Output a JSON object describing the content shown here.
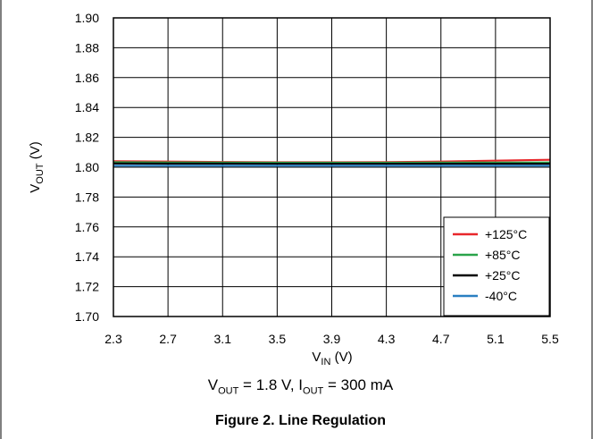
{
  "figure_title": "Figure 2. Line Regulation",
  "caption": {
    "v_sym": "V",
    "v_sub": "OUT",
    "v_rest": " = 1.8 V, ",
    "i_sym": "I",
    "i_sub": "OUT",
    "i_rest": " = 300 mA"
  },
  "colors": {
    "red": "#e8272b",
    "green": "#2aa34a",
    "black": "#000000",
    "blue": "#2a7fc1",
    "grid": "#000000"
  },
  "chart_data": {
    "type": "line",
    "xlabel": {
      "sym": "V",
      "sub": "IN",
      "unit": " (V)"
    },
    "ylabel": {
      "sym": "V",
      "sub": "OUT",
      "unit": " (V)"
    },
    "xlim": [
      2.3,
      5.5
    ],
    "ylim": [
      1.7,
      1.9
    ],
    "x_ticks": [
      "2.3",
      "2.7",
      "3.1",
      "3.5",
      "3.9",
      "4.3",
      "4.7",
      "5.1",
      "5.5"
    ],
    "y_ticks": [
      "1.70",
      "1.72",
      "1.74",
      "1.76",
      "1.78",
      "1.80",
      "1.82",
      "1.84",
      "1.86",
      "1.88",
      "1.90"
    ],
    "grid": true,
    "legend_position": "bottom-right",
    "series": [
      {
        "name": "+125°C",
        "color": "#e8272b",
        "x": [
          2.3,
          2.7,
          3.1,
          3.5,
          3.9,
          4.3,
          4.7,
          5.1,
          5.5
        ],
        "y": [
          1.804,
          1.8038,
          1.8035,
          1.8033,
          1.8033,
          1.8034,
          1.8038,
          1.8044,
          1.805
        ]
      },
      {
        "name": "+85°C",
        "color": "#2aa34a",
        "x": [
          2.3,
          2.7,
          3.1,
          3.5,
          3.9,
          4.3,
          4.7,
          5.1,
          5.5
        ],
        "y": [
          1.8033,
          1.8032,
          1.8031,
          1.803,
          1.803,
          1.803,
          1.8031,
          1.8031,
          1.8032
        ]
      },
      {
        "name": "+25°C",
        "color": "#000000",
        "x": [
          2.3,
          2.7,
          3.1,
          3.5,
          3.9,
          4.3,
          4.7,
          5.1,
          5.5
        ],
        "y": [
          1.8025,
          1.8024,
          1.8024,
          1.8023,
          1.8023,
          1.8023,
          1.8023,
          1.8023,
          1.8023
        ]
      },
      {
        "name": "-40°C",
        "color": "#2a7fc1",
        "x": [
          2.3,
          2.7,
          3.1,
          3.5,
          3.9,
          4.3,
          4.7,
          5.1,
          5.5
        ],
        "y": [
          1.801,
          1.801,
          1.801,
          1.801,
          1.801,
          1.801,
          1.801,
          1.801,
          1.801
        ]
      }
    ]
  }
}
